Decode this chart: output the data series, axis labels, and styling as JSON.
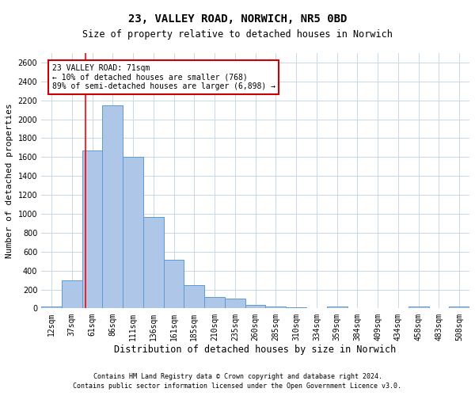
{
  "title": "23, VALLEY ROAD, NORWICH, NR5 0BD",
  "subtitle": "Size of property relative to detached houses in Norwich",
  "xlabel": "Distribution of detached houses by size in Norwich",
  "ylabel": "Number of detached properties",
  "categories": [
    "12sqm",
    "37sqm",
    "61sqm",
    "86sqm",
    "111sqm",
    "136sqm",
    "161sqm",
    "185sqm",
    "210sqm",
    "235sqm",
    "260sqm",
    "285sqm",
    "310sqm",
    "334sqm",
    "359sqm",
    "384sqm",
    "409sqm",
    "434sqm",
    "458sqm",
    "483sqm",
    "508sqm"
  ],
  "values": [
    20,
    300,
    1670,
    2150,
    1600,
    970,
    510,
    245,
    120,
    100,
    40,
    20,
    10,
    5,
    20,
    5,
    5,
    0,
    20,
    5,
    20
  ],
  "bar_color": "#aec6e8",
  "bar_edge_color": "#5b9bd5",
  "bar_width": 1.0,
  "red_line_x": 1.67,
  "red_line_color": "#ff0000",
  "annotation_text": "23 VALLEY ROAD: 71sqm\n← 10% of detached houses are smaller (768)\n89% of semi-detached houses are larger (6,898) →",
  "annotation_box_color": "#ffffff",
  "annotation_box_edge": "#cc0000",
  "ylim": [
    0,
    2700
  ],
  "yticks": [
    0,
    200,
    400,
    600,
    800,
    1000,
    1200,
    1400,
    1600,
    1800,
    2000,
    2200,
    2400,
    2600
  ],
  "footer1": "Contains HM Land Registry data © Crown copyright and database right 2024.",
  "footer2": "Contains public sector information licensed under the Open Government Licence v3.0.",
  "background_color": "#ffffff",
  "grid_color": "#c8d8e8",
  "title_fontsize": 10,
  "subtitle_fontsize": 8.5,
  "ylabel_fontsize": 8,
  "xlabel_fontsize": 8.5,
  "tick_fontsize": 7,
  "footer_fontsize": 6,
  "annot_fontsize": 7
}
